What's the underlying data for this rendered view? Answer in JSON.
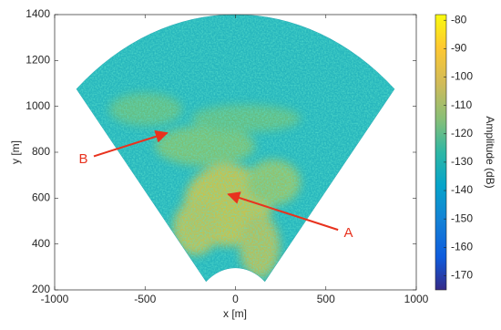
{
  "chart_data": {
    "type": "heatmap",
    "xlabel": "x [m]",
    "ylabel": "y [m]",
    "xlim": [
      -1000,
      1000
    ],
    "xticks": [
      -1000,
      -500,
      0,
      500,
      1000
    ],
    "ylim": [
      200,
      1400
    ],
    "yticks": [
      200,
      400,
      600,
      800,
      1000,
      1200,
      1400
    ],
    "colorbar": {
      "label": "Amplitude (dB)",
      "lim": [
        -175,
        -78
      ],
      "ticks": [
        -170,
        -160,
        -150,
        -140,
        -130,
        -120,
        -110,
        -100,
        -90,
        -80
      ]
    },
    "annotations": [
      {
        "text": "A",
        "xy": [
          -40,
          617
        ],
        "xytext": [
          625,
          447
        ]
      },
      {
        "text": "B",
        "xy": [
          -378,
          884
        ],
        "xytext": [
          -841,
          768
        ]
      }
    ]
  }
}
